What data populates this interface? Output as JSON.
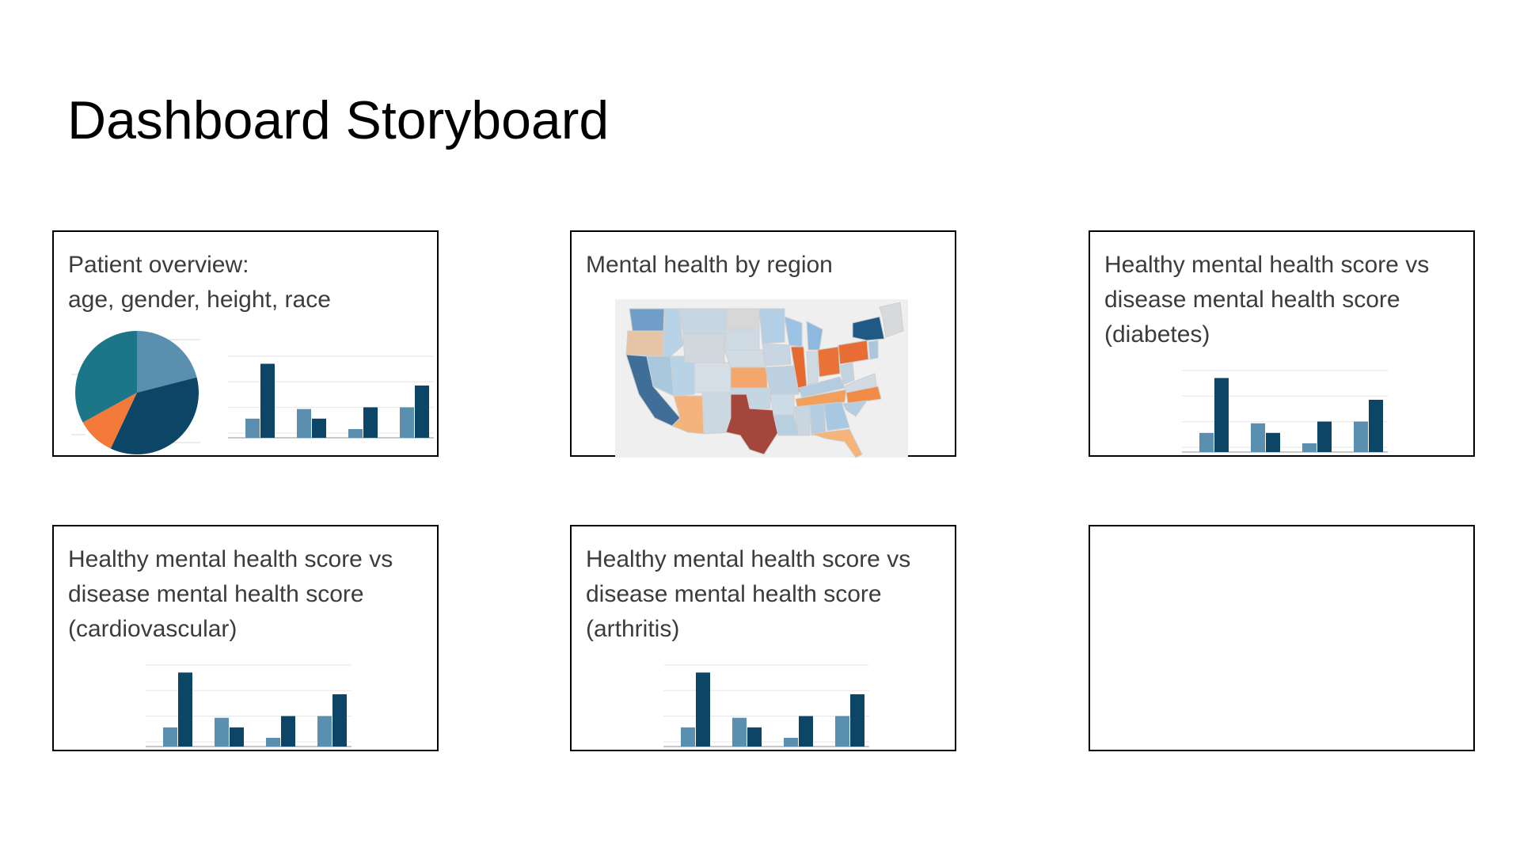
{
  "page": {
    "title": "Dashboard Storyboard"
  },
  "colors": {
    "light_blue": "#5b8fb0",
    "dark_blue": "#0d4566",
    "teal": "#1b7688",
    "orange": "#f47a3a",
    "gridline": "#e6e6e6",
    "axis": "#b5b5b5",
    "card_border": "#000000",
    "text": "#3c3c3c"
  },
  "cards": [
    {
      "lines": [
        "Patient overview:",
        "age, gender, height, race"
      ]
    },
    {
      "lines": [
        "Mental health by region"
      ]
    },
    {
      "lines": [
        "Healthy mental health score vs",
        "disease mental health score",
        "(diabetes)"
      ]
    },
    {
      "lines": [
        "Healthy mental health score vs",
        "disease mental health score",
        "(cardiovascular)"
      ]
    },
    {
      "lines": [
        "Healthy mental health score vs",
        "disease mental health score",
        "(arthritis)"
      ]
    },
    {
      "lines": []
    }
  ],
  "chart_data": [
    {
      "type": "pie",
      "values": [
        21,
        36,
        10,
        33
      ],
      "colors": [
        "#5b8fb0",
        "#0d4566",
        "#f47a3a",
        "#1b7688"
      ]
    },
    {
      "type": "bar",
      "categories": [
        "",
        "",
        "",
        ""
      ],
      "series": [
        {
          "values": [
            22,
            33,
            10,
            35
          ]
        },
        {
          "values": [
            85,
            22,
            35,
            60
          ]
        }
      ],
      "ylim": [
        0,
        100
      ]
    },
    {
      "type": "bar",
      "categories": [
        "",
        "",
        "",
        ""
      ],
      "series": [
        {
          "values": [
            22,
            33,
            10,
            35
          ]
        },
        {
          "values": [
            85,
            22,
            35,
            60
          ]
        }
      ],
      "ylim": [
        0,
        100
      ]
    },
    {
      "type": "bar",
      "categories": [
        "",
        "",
        "",
        ""
      ],
      "series": [
        {
          "values": [
            22,
            33,
            10,
            35
          ]
        },
        {
          "values": [
            85,
            22,
            35,
            60
          ]
        }
      ],
      "ylim": [
        0,
        100
      ]
    },
    {
      "type": "bar",
      "categories": [
        "",
        "",
        "",
        ""
      ],
      "series": [
        {
          "values": [
            22,
            33,
            10,
            35
          ]
        },
        {
          "values": [
            85,
            22,
            35,
            60
          ]
        }
      ],
      "ylim": [
        0,
        100
      ]
    }
  ]
}
